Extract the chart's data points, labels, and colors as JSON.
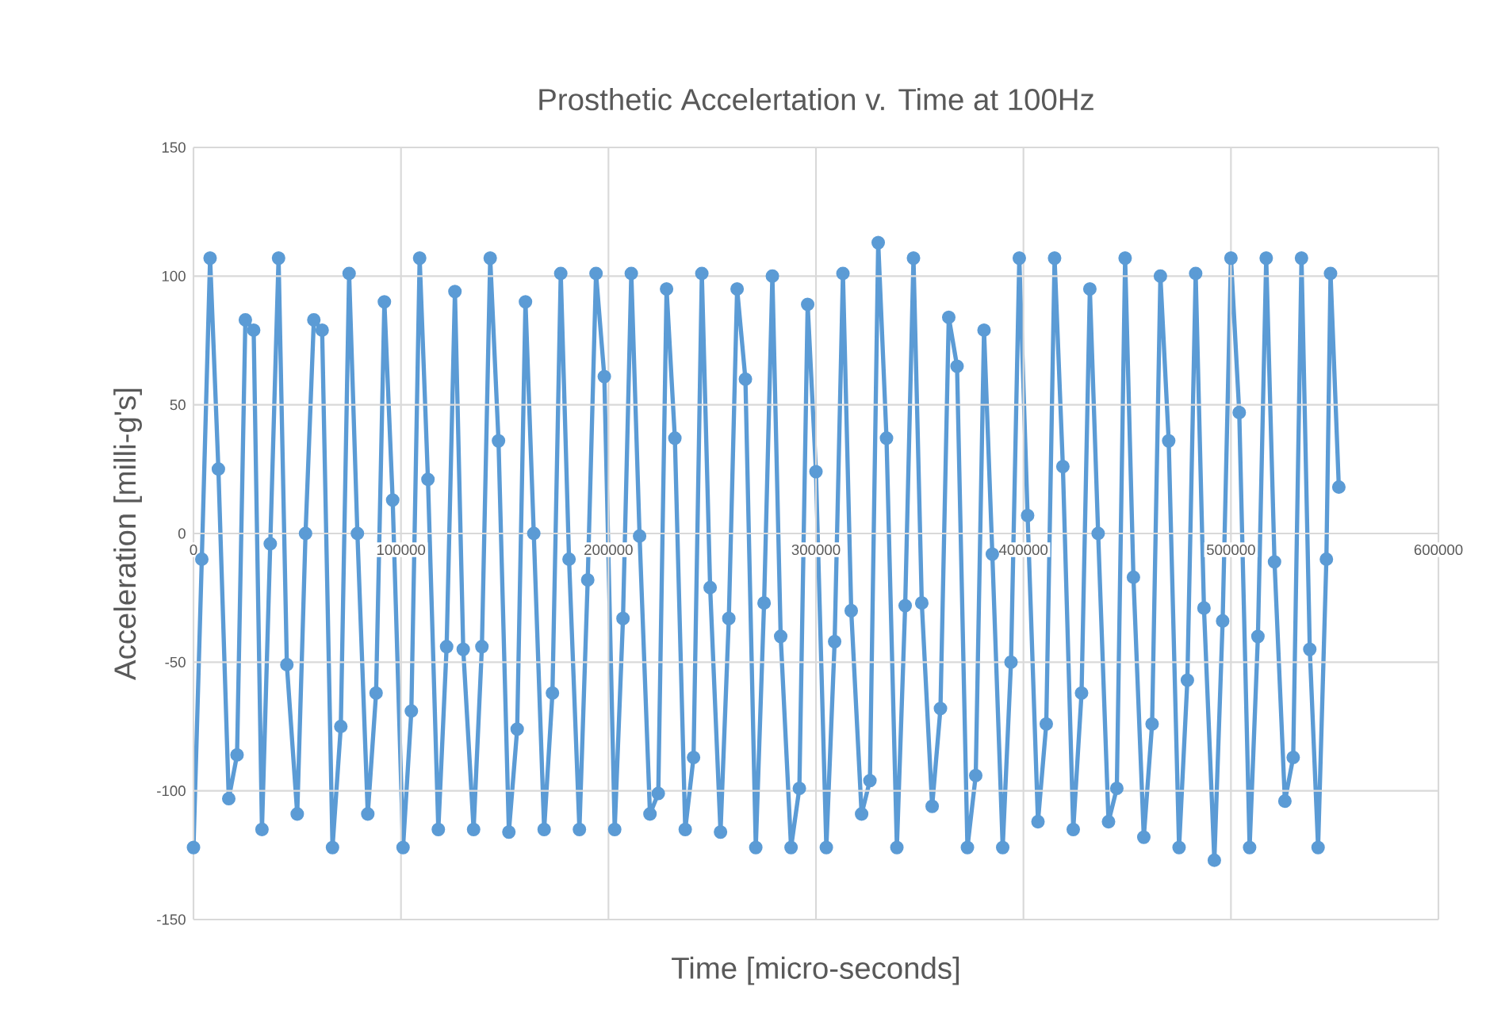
{
  "chart_data": {
    "type": "line",
    "title": "Prosthetic Accelertation v. Time at 100Hz",
    "xlabel": "Time [micro-seconds]",
    "ylabel": "Acceleration [milli-g's]",
    "xlim": [
      0,
      600000
    ],
    "ylim": [
      -150,
      150
    ],
    "xticks": [
      0,
      100000,
      200000,
      300000,
      400000,
      500000,
      600000
    ],
    "yticks": [
      -150,
      -100,
      -50,
      0,
      50,
      100,
      150
    ],
    "grid": true,
    "marker": "circle",
    "line_style": "solid",
    "legend": false,
    "series": [
      {
        "color": "#5b9bd5",
        "x": [
          0,
          4000,
          8000,
          12000,
          17000,
          21000,
          25000,
          29000,
          33000,
          37000,
          41000,
          45000,
          50000,
          54000,
          58000,
          62000,
          67000,
          71000,
          75000,
          79000,
          84000,
          88000,
          92000,
          96000,
          101000,
          105000,
          109000,
          113000,
          118000,
          122000,
          126000,
          130000,
          135000,
          139000,
          143000,
          147000,
          152000,
          156000,
          160000,
          164000,
          169000,
          173000,
          177000,
          181000,
          186000,
          190000,
          194000,
          198000,
          203000,
          207000,
          211000,
          215000,
          220000,
          224000,
          228000,
          232000,
          237000,
          241000,
          245000,
          249000,
          254000,
          258000,
          262000,
          266000,
          271000,
          275000,
          279000,
          283000,
          288000,
          292000,
          296000,
          300000,
          305000,
          309000,
          313000,
          317000,
          322000,
          326000,
          330000,
          334000,
          339000,
          343000,
          347000,
          351000,
          356000,
          360000,
          364000,
          368000,
          373000,
          377000,
          381000,
          385000,
          390000,
          394000,
          398000,
          402000,
          407000,
          411000,
          415000,
          419000,
          424000,
          428000,
          432000,
          436000,
          441000,
          445000,
          449000,
          453000,
          458000,
          462000,
          466000,
          470000,
          475000,
          479000,
          483000,
          487000,
          492000,
          496000,
          500000,
          504000,
          509000,
          513000,
          517000,
          521000,
          526000,
          530000,
          534000,
          538000,
          542000,
          546000,
          548000,
          552000
        ],
        "values": [
          -122,
          -10,
          107,
          25,
          -103,
          -86,
          83,
          79,
          -115,
          -4,
          107,
          -51,
          -109,
          0,
          83,
          79,
          -122,
          -75,
          101,
          0,
          -109,
          -62,
          90,
          13,
          -122,
          -69,
          107,
          21,
          -115,
          -44,
          94,
          -45,
          -115,
          -44,
          107,
          36,
          -116,
          -76,
          90,
          0,
          -115,
          -62,
          101,
          -10,
          -115,
          -18,
          101,
          61,
          -115,
          -33,
          101,
          -1,
          -109,
          -101,
          95,
          37,
          -115,
          -87,
          101,
          -21,
          -116,
          -33,
          95,
          60,
          -122,
          -27,
          100,
          -40,
          -122,
          -99,
          89,
          24,
          -122,
          -42,
          101,
          -30,
          -109,
          -96,
          113,
          37,
          -122,
          -28,
          107,
          -27,
          -106,
          -68,
          84,
          65,
          -122,
          -94,
          79,
          -8,
          -122,
          -50,
          107,
          7,
          -112,
          -74,
          107,
          26,
          -115,
          -62,
          95,
          0,
          -112,
          -99,
          107,
          -17,
          -118,
          -74,
          100,
          36,
          -122,
          -57,
          101,
          -29,
          -127,
          -34,
          107,
          47,
          -122,
          -40,
          107,
          -11,
          -104,
          -87,
          107,
          -45,
          -122,
          -10,
          101,
          18
        ]
      }
    ]
  }
}
